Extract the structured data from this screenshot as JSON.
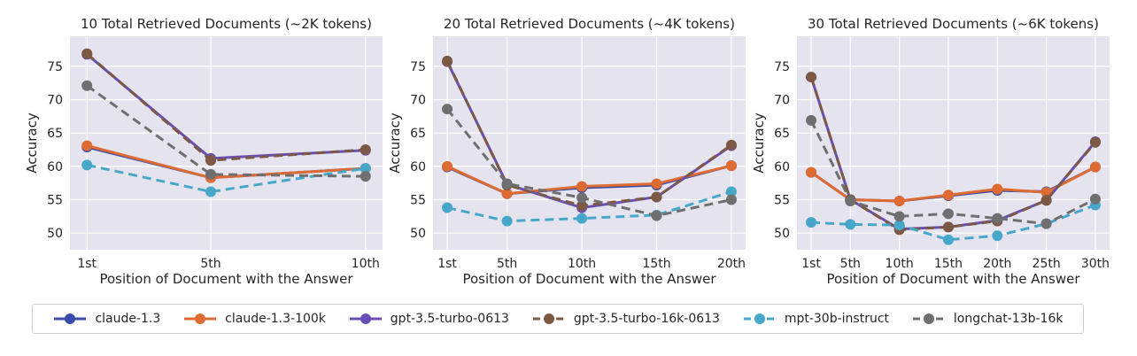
{
  "chart_data": [
    {
      "type": "line",
      "title": "10 Total Retrieved Documents (~2K tokens)",
      "xlabel": "Position of Document with the Answer",
      "ylabel": "Accuracy",
      "categories": [
        "1st",
        "5th",
        "10th"
      ],
      "x": [
        1,
        5,
        10
      ],
      "xlim": [
        0.45,
        10.55
      ],
      "ylim": [
        47.5,
        79.5
      ],
      "yticks": [
        50,
        55,
        60,
        65,
        70,
        75
      ],
      "series": [
        {
          "name": "claude-1.3",
          "values": [
            62.9,
            58.3,
            59.7
          ]
        },
        {
          "name": "claude-1.3-100k",
          "values": [
            63.1,
            58.3,
            59.7
          ]
        },
        {
          "name": "gpt-3.5-turbo-0613",
          "values": [
            76.8,
            61.2,
            62.4
          ]
        },
        {
          "name": "gpt-3.5-turbo-16k-0613",
          "values": [
            76.9,
            60.9,
            62.5
          ]
        },
        {
          "name": "mpt-30b-instruct",
          "values": [
            60.2,
            56.2,
            59.7
          ]
        },
        {
          "name": "longchat-13b-16k",
          "values": [
            72.1,
            58.8,
            58.5
          ]
        }
      ],
      "grid": true
    },
    {
      "type": "line",
      "title": "20 Total Retrieved Documents (~4K tokens)",
      "xlabel": "Position of Document with the Answer",
      "ylabel": "Accuracy",
      "categories": [
        "1st",
        "5th",
        "10th",
        "15th",
        "20th"
      ],
      "x": [
        1,
        5,
        10,
        15,
        20
      ],
      "xlim": [
        0.05,
        20.95
      ],
      "ylim": [
        47.5,
        79.5
      ],
      "yticks": [
        50,
        55,
        60,
        65,
        70,
        75
      ],
      "series": [
        {
          "name": "claude-1.3",
          "values": [
            59.9,
            55.9,
            56.8,
            57.2,
            60.1
          ]
        },
        {
          "name": "claude-1.3-100k",
          "values": [
            60.0,
            55.9,
            57.0,
            57.4,
            60.1
          ]
        },
        {
          "name": "gpt-3.5-turbo-0613",
          "values": [
            75.7,
            57.3,
            53.8,
            55.4,
            63.1
          ]
        },
        {
          "name": "gpt-3.5-turbo-16k-0613",
          "values": [
            75.8,
            57.2,
            54.1,
            55.4,
            63.2
          ]
        },
        {
          "name": "mpt-30b-instruct",
          "values": [
            53.8,
            51.8,
            52.2,
            52.7,
            56.2
          ]
        },
        {
          "name": "longchat-13b-16k",
          "values": [
            68.6,
            57.4,
            55.3,
            52.6,
            55.0
          ]
        }
      ],
      "grid": true
    },
    {
      "type": "line",
      "title": "30 Total Retrieved Documents (~6K tokens)",
      "xlabel": "Position of Document with the Answer",
      "ylabel": "Accuracy",
      "categories": [
        "1st",
        "5th",
        "10th",
        "15th",
        "20th",
        "25th",
        "30th"
      ],
      "x": [
        1,
        5,
        10,
        15,
        20,
        25,
        30
      ],
      "xlim": [
        -0.45,
        31.45
      ],
      "ylim": [
        47.5,
        79.5
      ],
      "yticks": [
        50,
        55,
        60,
        65,
        70,
        75
      ],
      "series": [
        {
          "name": "claude-1.3",
          "values": [
            59.1,
            55.0,
            54.8,
            55.6,
            56.4,
            56.2,
            59.9
          ]
        },
        {
          "name": "claude-1.3-100k",
          "values": [
            59.1,
            55.0,
            54.8,
            55.7,
            56.6,
            56.1,
            59.9
          ]
        },
        {
          "name": "gpt-3.5-turbo-0613",
          "values": [
            73.4,
            55.0,
            50.6,
            50.9,
            51.9,
            54.9,
            63.7
          ]
        },
        {
          "name": "gpt-3.5-turbo-16k-0613",
          "values": [
            73.4,
            55.0,
            50.5,
            50.9,
            51.8,
            54.9,
            63.6
          ]
        },
        {
          "name": "mpt-30b-instruct",
          "values": [
            51.6,
            51.3,
            51.2,
            49.0,
            49.6,
            51.4,
            54.2
          ]
        },
        {
          "name": "longchat-13b-16k",
          "values": [
            66.9,
            54.8,
            52.5,
            52.9,
            52.2,
            51.4,
            55.1
          ]
        }
      ],
      "grid": true
    }
  ],
  "legend": {
    "placement": "bottom",
    "entries": [
      {
        "name": "claude-1.3",
        "color": "#3a4cab"
      },
      {
        "name": "claude-1.3-100k",
        "color": "#dd6b32"
      },
      {
        "name": "gpt-3.5-turbo-0613",
        "color": "#6a4fb2"
      },
      {
        "name": "gpt-3.5-turbo-16k-0613",
        "color": "#7b5945"
      },
      {
        "name": "mpt-30b-instruct",
        "color": "#47a7c8"
      },
      {
        "name": "longchat-13b-16k",
        "color": "#6f6f6f"
      }
    ]
  },
  "styles": {
    "plot_background": "#e4e3ee",
    "grid_color": "#ffffff",
    "series_colors": [
      "#3a4cab",
      "#dd6b32",
      "#6a4fb2",
      "#7b5945",
      "#47a7c8",
      "#6f6f6f"
    ],
    "dashed_series": [
      "gpt-3.5-turbo-16k-0613",
      "mpt-30b-instruct",
      "longchat-13b-16k"
    ]
  }
}
